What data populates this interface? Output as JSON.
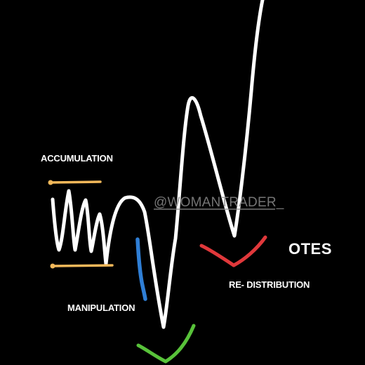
{
  "labels": {
    "accumulation": "ACCUMULATION",
    "manipulation": "MANIPULATION",
    "otes": "OTES",
    "redistribution": "RE- DISTRIBUTION"
  },
  "watermark": "@WOMANTRADER_",
  "colors": {
    "background": "#000000",
    "price_path": "#ffffff",
    "range_lines": "#f2b85a",
    "manipulation_marker": "#2f7fd6",
    "otes_marker": "#e0383b",
    "bottom_marker": "#58c23a",
    "label_text": "#ffffff",
    "watermark_text": "#8a8a8a"
  }
}
